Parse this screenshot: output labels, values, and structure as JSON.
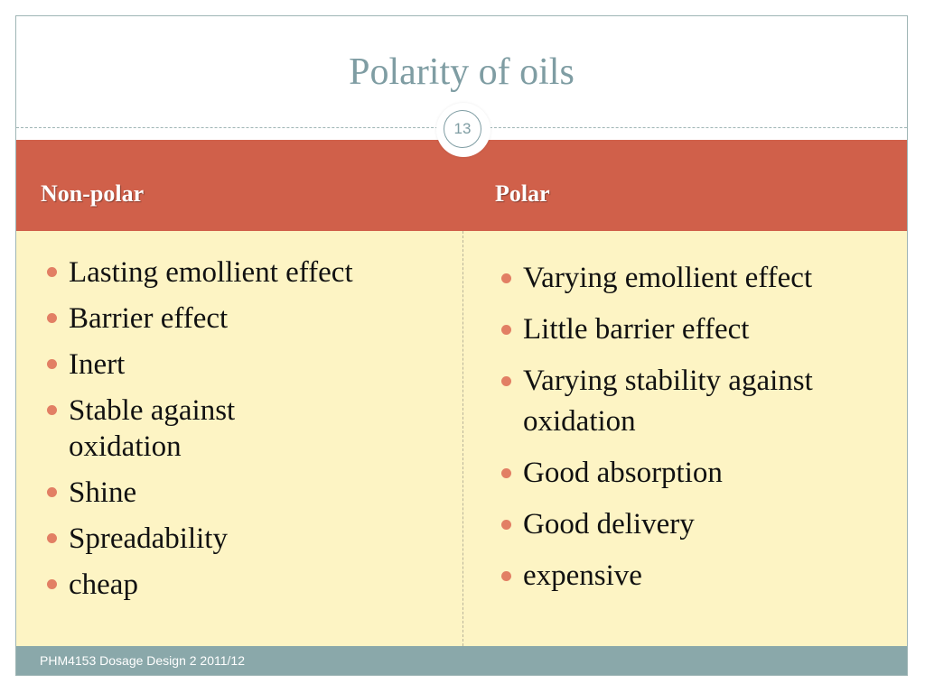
{
  "slide": {
    "title": "Polarity of oils",
    "slide_number": "13",
    "footer": "PHM4153 Dosage Design 2 2011/12"
  },
  "table": {
    "headers": [
      "Non-polar",
      "Polar"
    ],
    "non_polar": [
      "Lasting emollient effect",
      "Barrier effect",
      "Inert",
      "Stable against oxidation",
      "Shine",
      "Spreadability",
      "cheap"
    ],
    "polar": [
      "Varying emollient effect",
      "Little barrier effect",
      "Varying stability against oxidation",
      "Good absorption",
      "Good delivery",
      "expensive"
    ]
  },
  "colors": {
    "title": "#7f9da3",
    "header_band": "#d0604a",
    "body_band": "#fdf4c4",
    "bullet": "#e27f64",
    "footer_band": "#8aa8aa"
  }
}
